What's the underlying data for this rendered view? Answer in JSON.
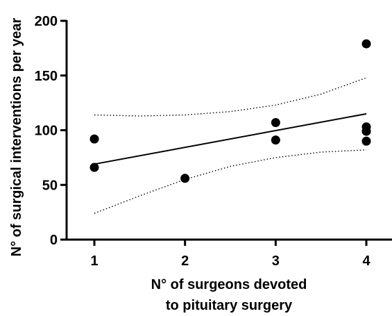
{
  "chart_data": {
    "type": "scatter",
    "title": "",
    "xlabel_lines": [
      "N° of surgeons devoted",
      "to pituitary surgery"
    ],
    "ylabel": "N° of surgical interventions per year",
    "x_ticks": [
      1,
      2,
      3,
      4
    ],
    "y_ticks": [
      0,
      50,
      100,
      150,
      200
    ],
    "xlim": [
      0.5,
      4.3
    ],
    "ylim": [
      0,
      200
    ],
    "grid": false,
    "legend": "none",
    "colors": {
      "points": "#000000",
      "fit": "#000000",
      "ci": "#000000"
    },
    "points": [
      {
        "x": 1,
        "y": 92
      },
      {
        "x": 1,
        "y": 66
      },
      {
        "x": 2,
        "y": 56
      },
      {
        "x": 3,
        "y": 107
      },
      {
        "x": 3,
        "y": 91
      },
      {
        "x": 4,
        "y": 179
      },
      {
        "x": 4,
        "y": 103
      },
      {
        "x": 4,
        "y": 99
      },
      {
        "x": 4,
        "y": 90
      }
    ],
    "fit_line": {
      "x": [
        1,
        4
      ],
      "y": [
        69,
        115
      ]
    },
    "ci_upper": {
      "x": [
        1,
        1.5,
        2,
        2.5,
        3,
        3.5,
        4
      ],
      "y": [
        114,
        113,
        114,
        117,
        123,
        133,
        148
      ]
    },
    "ci_lower": {
      "x": [
        1,
        1.5,
        2,
        2.5,
        3,
        3.5,
        4
      ],
      "y": [
        24,
        40,
        55,
        67,
        75,
        80,
        82
      ]
    }
  }
}
